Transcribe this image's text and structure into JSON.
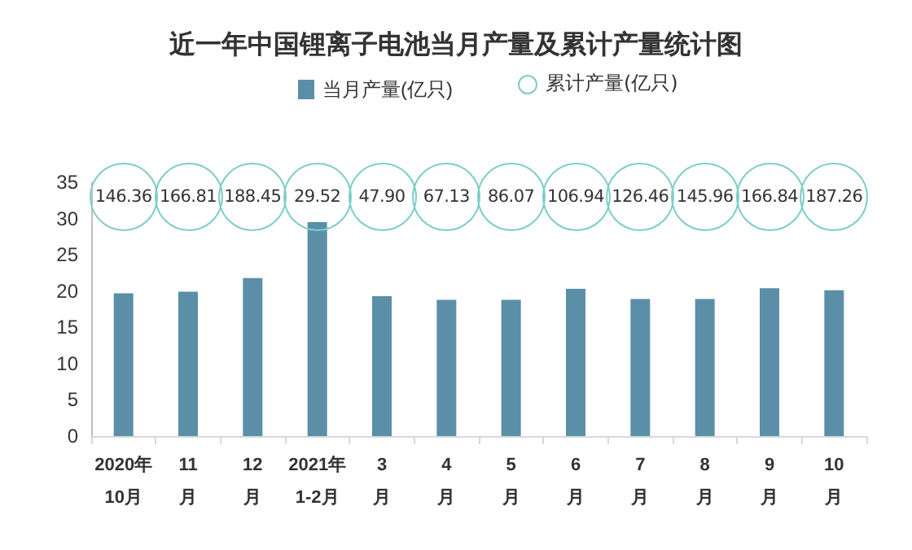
{
  "chart_data": {
    "type": "bar",
    "title": "近一年中国锂离子电池当月产量及累计产量统计图",
    "categories": [
      "2020年\n10月",
      "11\n月",
      "12\n月",
      "2021年\n1-2月",
      "3\n月",
      "4\n月",
      "5\n月",
      "6\n月",
      "7\n月",
      "8\n月",
      "9\n月",
      "10\n月"
    ],
    "series": [
      {
        "name": "当月产量(亿只)",
        "color": "#5b8fa8",
        "values": [
          19.7,
          19.9,
          21.8,
          29.5,
          19.3,
          18.8,
          18.8,
          20.3,
          18.9,
          18.9,
          20.4,
          20.1
        ]
      }
    ],
    "annotations": [
      "累计产量(亿只)",
      {
        "text": "146.36",
        "x": "2020年\n10月"
      },
      {
        "text": "166.81",
        "x": "11\n月"
      },
      {
        "text": "188.45",
        "x": "12\n月"
      },
      {
        "text": "29.52",
        "x": "2021年\n1-2月"
      },
      {
        "text": "47.90",
        "x": "3\n月"
      },
      {
        "text": "67.13",
        "x": "4\n月"
      },
      {
        "text": "86.07",
        "x": "5\n月"
      },
      {
        "text": "106.94",
        "x": "6\n月"
      },
      {
        "text": "126.46",
        "x": "7\n月"
      },
      {
        "text": "145.96",
        "x": "8\n月"
      },
      {
        "text": "166.84",
        "x": "9\n月"
      },
      {
        "text": "187.26",
        "x": "10\n月"
      }
    ],
    "ylim": [
      0,
      35
    ],
    "yticks": [
      0,
      5,
      10,
      15,
      20,
      25,
      30,
      35
    ],
    "grid": false,
    "legend": "top"
  }
}
